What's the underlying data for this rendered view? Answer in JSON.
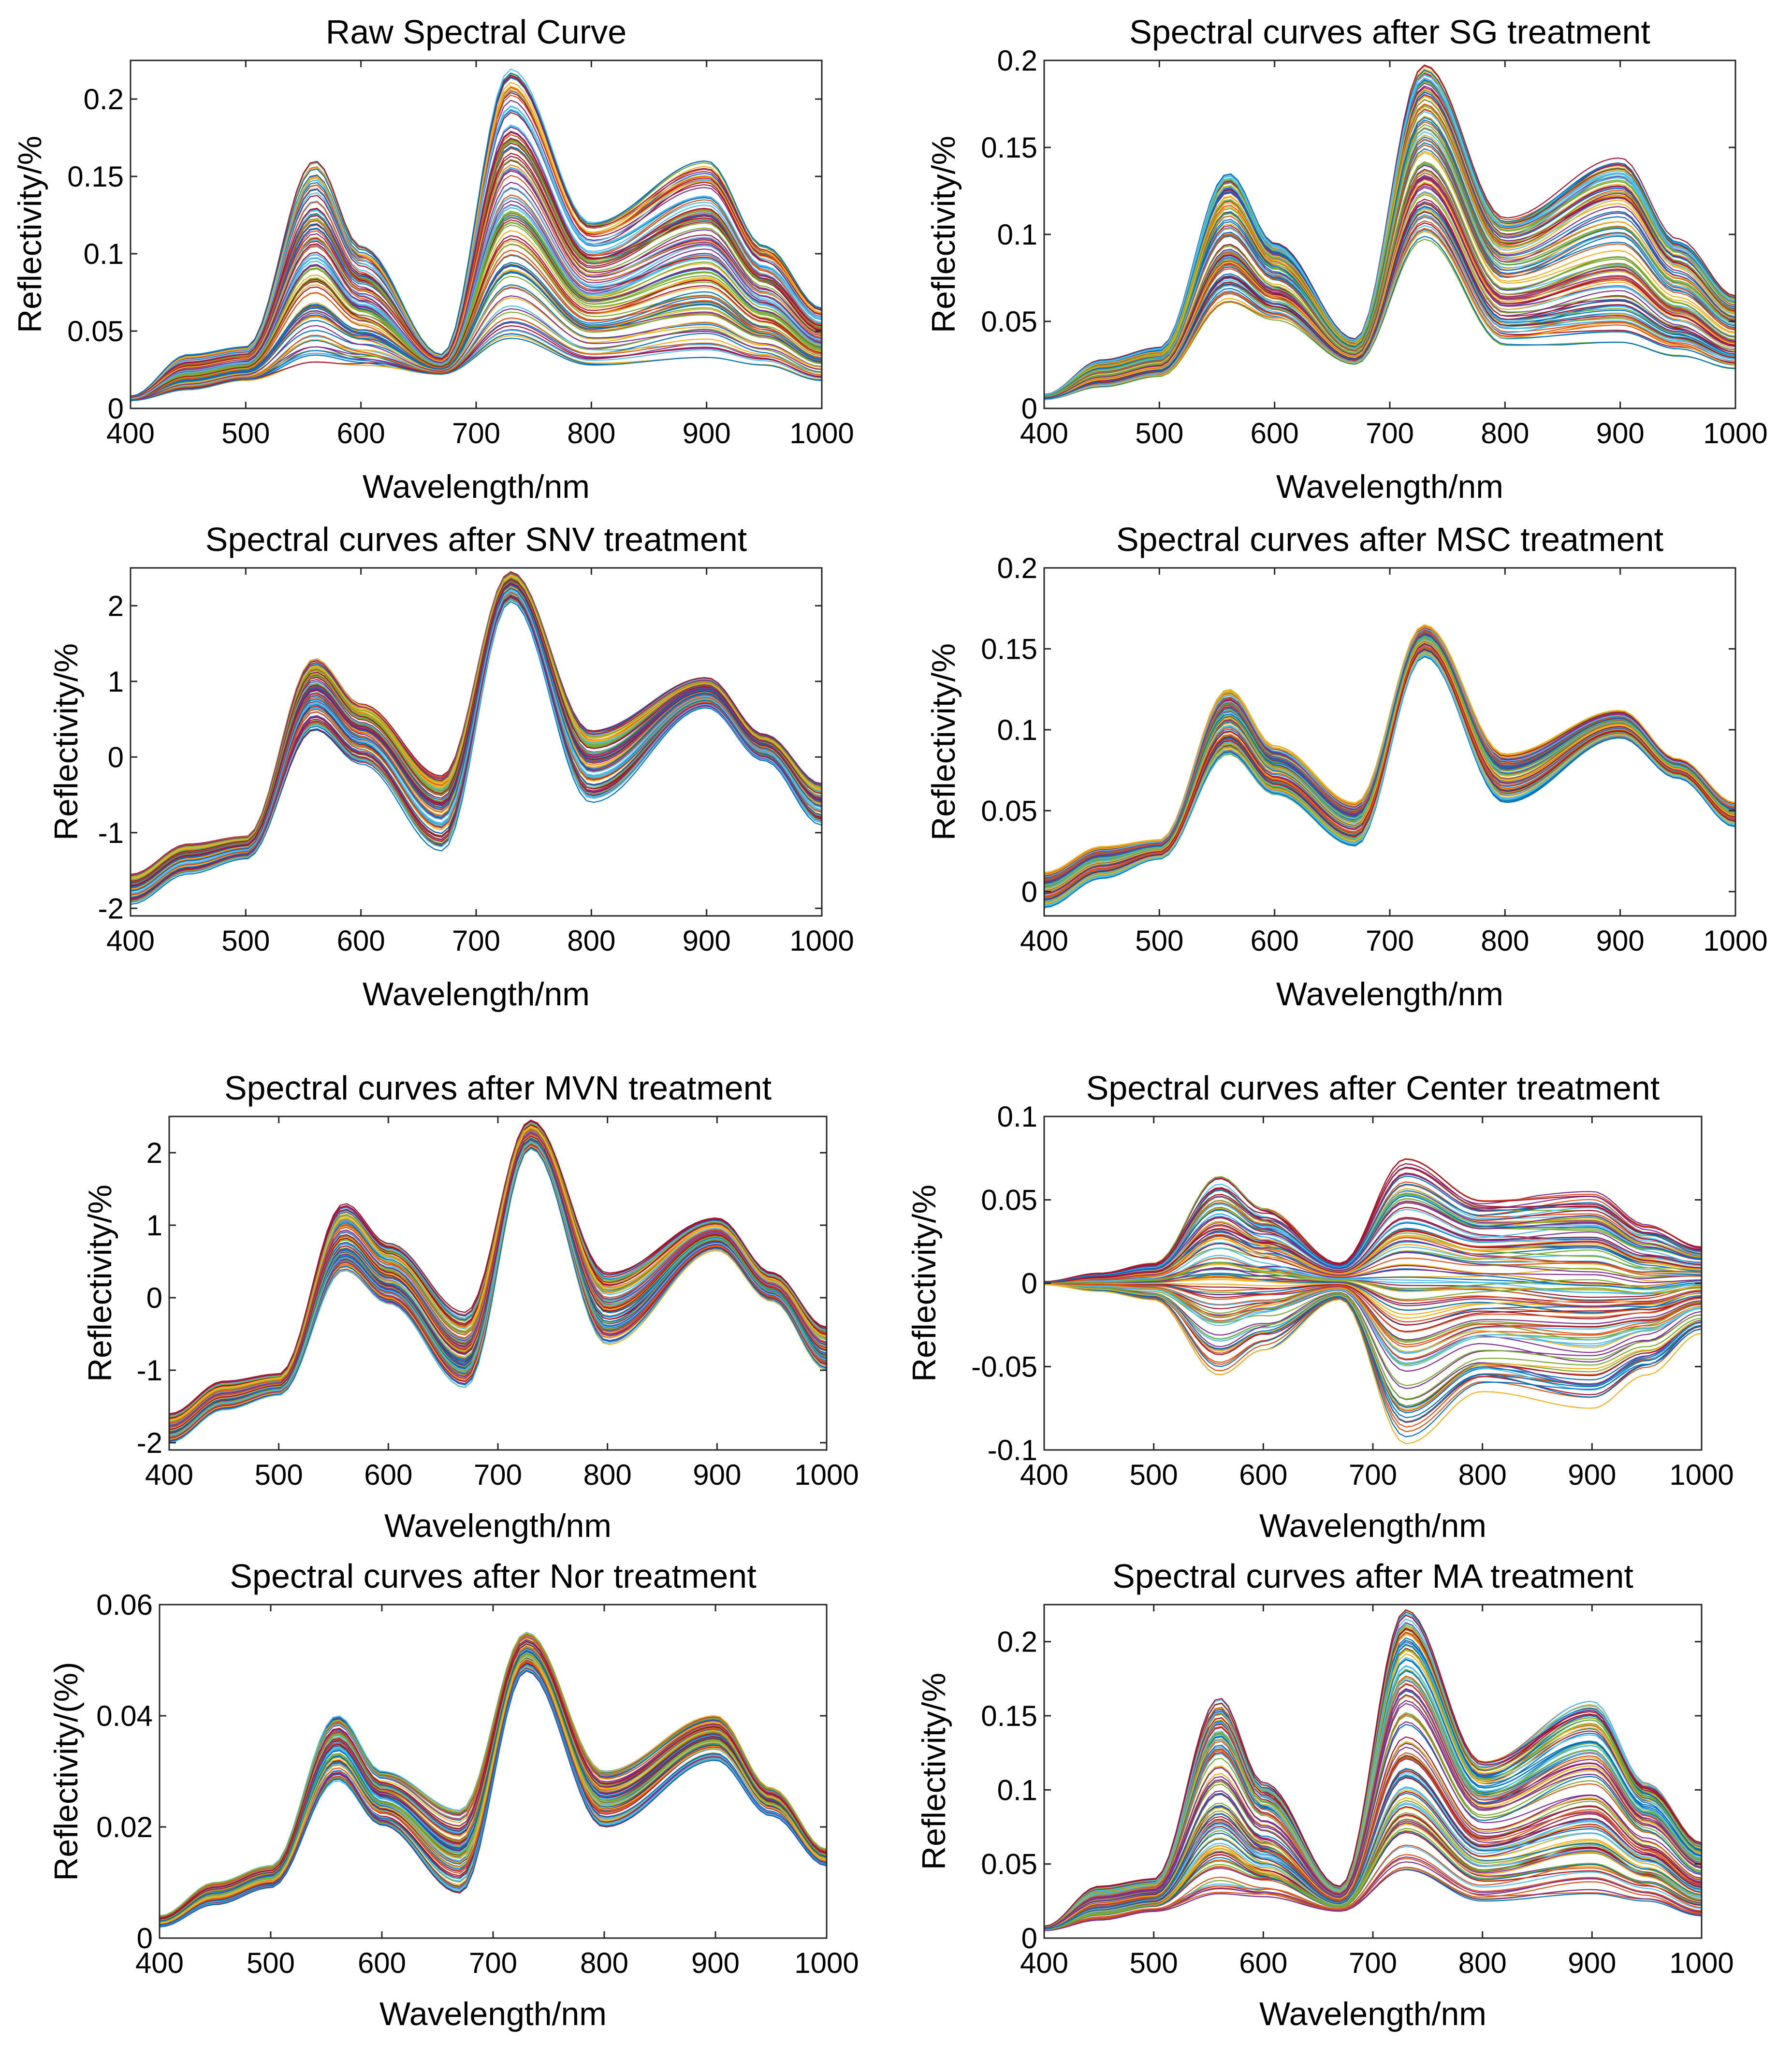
{
  "figure": {
    "description_shown": "Eight panels of hyperspectral reflectance curves"
  },
  "palette": [
    "#0072BD",
    "#D95319",
    "#EDB120",
    "#7E2F8E",
    "#77AC30",
    "#4DBEEE",
    "#A2142F"
  ],
  "chart_data": [
    {
      "type": "line",
      "id": "raw",
      "title": "Raw Spectral Curve",
      "xlabel": "Wavelength/nm",
      "ylabel": "Reflectivity/%",
      "xlim": [
        400,
        1000
      ],
      "ylim": [
        0,
        0.225
      ],
      "xticks": [
        400,
        500,
        600,
        700,
        800,
        900,
        1000
      ],
      "xtick_labels": [
        "400",
        "500",
        "600",
        "700",
        "800",
        "900",
        "1000"
      ],
      "yticks": [
        0,
        0.05,
        0.1,
        0.15,
        0.2
      ],
      "ytick_labels": [
        "0",
        "0.05",
        "0.1",
        "0.15",
        "0.2"
      ],
      "n_series": 120,
      "x": [
        400,
        450,
        500,
        560,
        600,
        670,
        730,
        800,
        900,
        950,
        1000
      ],
      "series_envelope": {
        "min": [
          0.005,
          0.012,
          0.018,
          0.03,
          0.028,
          0.022,
          0.045,
          0.028,
          0.033,
          0.028,
          0.018
        ],
        "max": [
          0.008,
          0.035,
          0.04,
          0.16,
          0.105,
          0.035,
          0.22,
          0.12,
          0.16,
          0.105,
          0.065
        ]
      }
    },
    {
      "type": "line",
      "id": "sg",
      "title": "Spectral curves after SG treatment",
      "xlabel": "Wavelength/nm",
      "ylabel": "Reflectivity/%",
      "xlim": [
        400,
        1000
      ],
      "ylim": [
        0,
        0.2
      ],
      "xticks": [
        400,
        500,
        600,
        700,
        800,
        900,
        1000
      ],
      "xtick_labels": [
        "400",
        "500",
        "600",
        "700",
        "800",
        "900",
        "1000"
      ],
      "yticks": [
        0,
        0.05,
        0.1,
        0.15,
        0.2
      ],
      "ytick_labels": [
        "0",
        "0.05",
        "0.1",
        "0.15",
        "0.2"
      ],
      "n_series": 120,
      "x": [
        400,
        450,
        500,
        560,
        600,
        670,
        730,
        800,
        900,
        950,
        1000
      ],
      "series_envelope": {
        "min": [
          0.005,
          0.012,
          0.018,
          0.06,
          0.05,
          0.025,
          0.095,
          0.035,
          0.038,
          0.03,
          0.022
        ],
        "max": [
          0.008,
          0.028,
          0.035,
          0.135,
          0.095,
          0.04,
          0.198,
          0.11,
          0.145,
          0.098,
          0.065
        ]
      }
    },
    {
      "type": "line",
      "id": "snv",
      "title": "Spectral curves after SNV treatment",
      "xlabel": "Wavelength/nm",
      "ylabel": "Reflectivity/%",
      "xlim": [
        400,
        1000
      ],
      "ylim": [
        -2.1,
        2.5
      ],
      "xticks": [
        400,
        500,
        600,
        700,
        800,
        900,
        1000
      ],
      "xtick_labels": [
        "400",
        "500",
        "600",
        "700",
        "800",
        "900",
        "1000"
      ],
      "yticks": [
        -2,
        -1,
        0,
        1,
        2
      ],
      "ytick_labels": [
        "-2",
        "-1",
        "0",
        "1",
        "2"
      ],
      "n_series": 120,
      "x": [
        400,
        450,
        500,
        560,
        600,
        670,
        730,
        800,
        900,
        950,
        1000
      ],
      "series_envelope": {
        "min": [
          -1.95,
          -1.55,
          -1.35,
          0.35,
          -0.1,
          -1.25,
          2.05,
          -0.6,
          0.65,
          -0.05,
          -0.9
        ],
        "max": [
          -1.55,
          -1.15,
          -1.05,
          1.3,
          0.7,
          -0.25,
          2.45,
          0.35,
          1.05,
          0.3,
          -0.35
        ]
      }
    },
    {
      "type": "line",
      "id": "msc",
      "title": "Spectral curves after MSC treatment",
      "xlabel": "Wavelength/nm",
      "ylabel": "Reflectivity/%",
      "xlim": [
        400,
        1000
      ],
      "ylim": [
        -0.015,
        0.2
      ],
      "xticks": [
        400,
        500,
        600,
        700,
        800,
        900,
        1000
      ],
      "xtick_labels": [
        "400",
        "500",
        "600",
        "700",
        "800",
        "900",
        "1000"
      ],
      "yticks": [
        0,
        0.05,
        0.1,
        0.15,
        0.2
      ],
      "ytick_labels": [
        "0",
        "0.05",
        "0.1",
        "0.15",
        "0.2"
      ],
      "n_series": 120,
      "x": [
        400,
        450,
        500,
        560,
        600,
        670,
        730,
        800,
        900,
        950,
        1000
      ],
      "series_envelope": {
        "min": [
          -0.01,
          0.008,
          0.02,
          0.085,
          0.06,
          0.028,
          0.145,
          0.055,
          0.095,
          0.07,
          0.04
        ],
        "max": [
          0.012,
          0.028,
          0.032,
          0.125,
          0.09,
          0.055,
          0.165,
          0.085,
          0.112,
          0.082,
          0.055
        ]
      }
    },
    {
      "type": "line",
      "id": "mvn",
      "title": "Spectral curves after MVN treatment",
      "xlabel": "Wavelength/nm",
      "ylabel": "Reflectivity/%",
      "xlim": [
        400,
        1000
      ],
      "ylim": [
        -2.1,
        2.5
      ],
      "xticks": [
        400,
        500,
        600,
        700,
        800,
        900,
        1000
      ],
      "xtick_labels": [
        "400",
        "500",
        "600",
        "700",
        "800",
        "900",
        "1000"
      ],
      "yticks": [
        -2,
        -1,
        0,
        1,
        2
      ],
      "ytick_labels": [
        "-2",
        "-1",
        "0",
        "1",
        "2"
      ],
      "n_series": 120,
      "x": [
        400,
        450,
        500,
        560,
        600,
        670,
        730,
        800,
        900,
        950,
        1000
      ],
      "series_envelope": {
        "min": [
          -2.0,
          -1.55,
          -1.35,
          0.35,
          -0.1,
          -1.25,
          2.05,
          -0.65,
          0.65,
          -0.05,
          -1.0
        ],
        "max": [
          -1.6,
          -1.15,
          -1.05,
          1.3,
          0.75,
          -0.2,
          2.45,
          0.35,
          1.1,
          0.35,
          -0.4
        ]
      }
    },
    {
      "type": "line",
      "id": "center",
      "title": "Spectral curves after Center treatment",
      "xlabel": "Wavelength/nm",
      "ylabel": "Reflectivity/%",
      "xlim": [
        400,
        1000
      ],
      "ylim": [
        -0.1,
        0.1
      ],
      "xticks": [
        400,
        500,
        600,
        700,
        800,
        900,
        1000
      ],
      "xtick_labels": [
        "400",
        "500",
        "600",
        "700",
        "800",
        "900",
        "1000"
      ],
      "yticks": [
        -0.1,
        -0.05,
        0,
        0.05,
        0.1
      ],
      "ytick_labels": [
        "-0.1",
        "-0.05",
        "0",
        "0.05",
        "0.1"
      ],
      "n_series": 120,
      "x": [
        400,
        450,
        500,
        560,
        600,
        670,
        730,
        800,
        900,
        950,
        1000
      ],
      "series_envelope": {
        "min": [
          -0.001,
          -0.005,
          -0.01,
          -0.055,
          -0.04,
          -0.01,
          -0.098,
          -0.065,
          -0.075,
          -0.055,
          -0.03
        ],
        "max": [
          0.001,
          0.006,
          0.012,
          0.064,
          0.045,
          0.012,
          0.075,
          0.05,
          0.055,
          0.035,
          0.022
        ]
      }
    },
    {
      "type": "line",
      "id": "nor",
      "title": "Spectral curves after Nor treatment",
      "xlabel": "Wavelength/nm",
      "ylabel": "Reflectivity/(%)",
      "xlim": [
        400,
        1000
      ],
      "ylim": [
        0,
        0.06
      ],
      "xticks": [
        400,
        500,
        600,
        700,
        800,
        900,
        1000
      ],
      "xtick_labels": [
        "400",
        "500",
        "600",
        "700",
        "800",
        "900",
        "1000"
      ],
      "yticks": [
        0,
        0.02,
        0.04,
        0.06
      ],
      "ytick_labels": [
        "0",
        "0.02",
        "0.04",
        "0.06"
      ],
      "n_series": 120,
      "x": [
        400,
        450,
        500,
        560,
        600,
        670,
        730,
        800,
        900,
        950,
        1000
      ],
      "series_envelope": {
        "min": [
          0.002,
          0.006,
          0.009,
          0.028,
          0.02,
          0.008,
          0.048,
          0.02,
          0.032,
          0.022,
          0.013
        ],
        "max": [
          0.004,
          0.01,
          0.013,
          0.04,
          0.03,
          0.023,
          0.055,
          0.03,
          0.04,
          0.027,
          0.016
        ]
      }
    },
    {
      "type": "line",
      "id": "ma",
      "title": "Spectral curves after MA treatment",
      "xlabel": "Wavelength/nm",
      "ylabel": "Reflectivity/%",
      "xlim": [
        400,
        1000
      ],
      "ylim": [
        0,
        0.225
      ],
      "xticks": [
        400,
        500,
        600,
        700,
        800,
        900,
        1000
      ],
      "xtick_labels": [
        "400",
        "500",
        "600",
        "700",
        "800",
        "900",
        "1000"
      ],
      "yticks": [
        0,
        0.05,
        0.1,
        0.15,
        0.2
      ],
      "ytick_labels": [
        "0",
        "0.05",
        "0.1",
        "0.15",
        "0.2"
      ],
      "n_series": 120,
      "x": [
        400,
        450,
        500,
        560,
        600,
        670,
        730,
        800,
        900,
        950,
        1000
      ],
      "series_envelope": {
        "min": [
          0.005,
          0.012,
          0.018,
          0.03,
          0.028,
          0.018,
          0.045,
          0.025,
          0.03,
          0.025,
          0.015
        ],
        "max": [
          0.008,
          0.035,
          0.04,
          0.162,
          0.105,
          0.035,
          0.222,
          0.12,
          0.16,
          0.105,
          0.065
        ]
      }
    }
  ]
}
